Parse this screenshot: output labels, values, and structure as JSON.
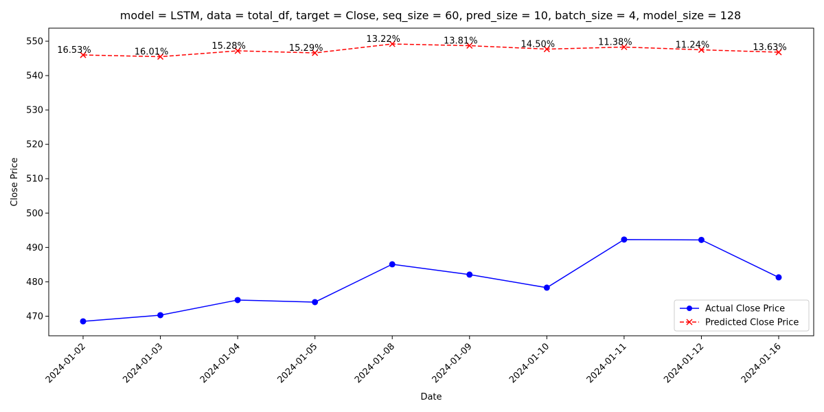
{
  "chart_data": {
    "type": "line",
    "title": "model = LSTM, data = total_df, target = Close, seq_size = 60, pred_size = 10, batch_size = 4, model_size = 128",
    "xlabel": "Date",
    "ylabel": "Close Price",
    "categories": [
      "2024-01-02",
      "2024-01-03",
      "2024-01-04",
      "2024-01-05",
      "2024-01-08",
      "2024-01-09",
      "2024-01-10",
      "2024-01-11",
      "2024-01-12",
      "2024-01-16"
    ],
    "ylim": [
      464.3,
      553.8
    ],
    "yticks": [
      470,
      480,
      490,
      500,
      510,
      520,
      530,
      540,
      550
    ],
    "grid": false,
    "legend_position": "lower-right",
    "series": [
      {
        "name": "Actual Close Price",
        "color": "#0000ff",
        "marker": "circle",
        "line_style": "solid",
        "values": [
          468.5,
          470.3,
          474.7,
          474.1,
          485.1,
          482.1,
          478.3,
          492.3,
          492.2,
          481.3
        ]
      },
      {
        "name": "Predicted Close Price",
        "color": "#ff0000",
        "marker": "x",
        "line_style": "dashed",
        "values": [
          546.0,
          545.5,
          547.2,
          546.6,
          549.2,
          548.7,
          547.7,
          548.3,
          547.5,
          546.8
        ]
      }
    ],
    "annotations": [
      "16.53%",
      "16.01%",
      "15.28%",
      "15.29%",
      "13.22%",
      "13.81%",
      "14.50%",
      "11.38%",
      "11.24%",
      "13.63%"
    ]
  }
}
